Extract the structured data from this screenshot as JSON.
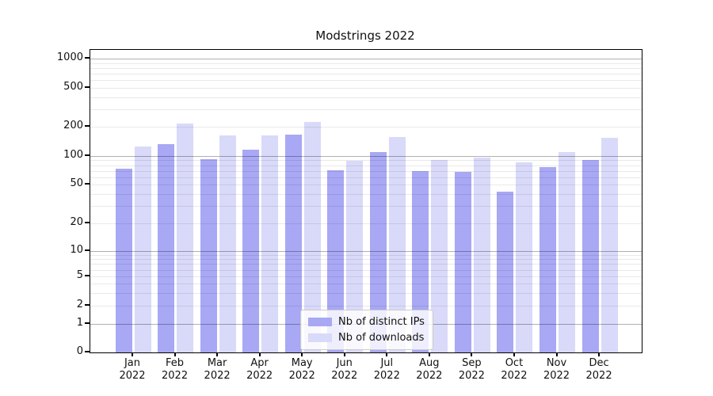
{
  "chart_data": {
    "type": "bar",
    "title": "Modstrings 2022",
    "x_axis": {
      "months": [
        "Jan",
        "Feb",
        "Mar",
        "Apr",
        "May",
        "Jun",
        "Jul",
        "Aug",
        "Sep",
        "Oct",
        "Nov",
        "Dec"
      ],
      "year_suffix": "2022"
    },
    "y_axis": {
      "scale": "symlog",
      "ticks": [
        0,
        1,
        2,
        5,
        10,
        20,
        50,
        100,
        200,
        500,
        1000
      ],
      "top_value": 1000
    },
    "series": [
      {
        "name": "Nb of distinct IPs",
        "color": "#a8a8f4",
        "values": [
          74,
          133,
          93,
          116,
          166,
          71,
          110,
          70,
          68,
          42,
          76,
          91
        ]
      },
      {
        "name": "Nb of downloads",
        "color": "#d9d9f9",
        "values": [
          125,
          214,
          163,
          163,
          222,
          89,
          156,
          91,
          97,
          86,
          110,
          154
        ]
      }
    ],
    "legend": {
      "position": "lower-center"
    },
    "grid": "on"
  }
}
